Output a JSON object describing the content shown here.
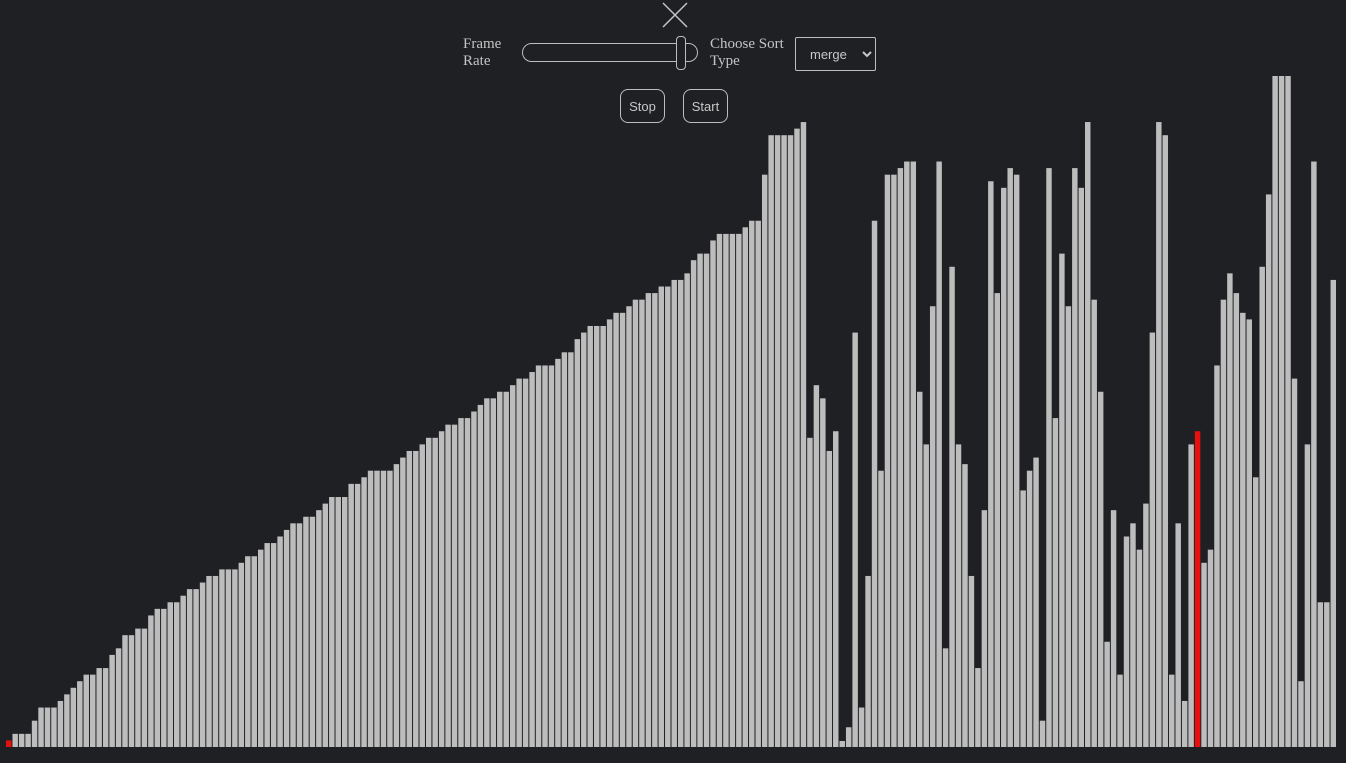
{
  "controls": {
    "frame_rate_label": "Frame Rate",
    "frame_rate_value": 0.93,
    "sort_type_label": "Choose Sort Type",
    "sort_type_selected": "merge",
    "stop_label": "Stop",
    "start_label": "Start"
  },
  "colors": {
    "background": "#1f2024",
    "bar": "#bdbdbd",
    "highlight": "#e8100f"
  },
  "icons": {
    "close": "close-icon"
  },
  "chart_data": {
    "type": "bar",
    "highlighted_indices": [
      0,
      184
    ],
    "values": [
      1,
      2,
      2,
      2,
      4,
      6,
      6,
      6,
      7,
      8,
      9,
      10,
      11,
      11,
      12,
      12,
      14,
      15,
      17,
      17,
      18,
      18,
      20,
      21,
      21,
      22,
      22,
      23,
      24,
      24,
      25,
      26,
      26,
      27,
      27,
      27,
      28,
      29,
      29,
      30,
      31,
      31,
      32,
      33,
      34,
      34,
      35,
      35,
      36,
      37,
      38,
      38,
      38,
      40,
      40,
      41,
      42,
      42,
      42,
      42,
      43,
      44,
      45,
      45,
      46,
      47,
      47,
      48,
      49,
      49,
      50,
      50,
      51,
      52,
      53,
      53,
      54,
      54,
      55,
      56,
      56,
      57,
      58,
      58,
      58,
      59,
      60,
      60,
      62,
      63,
      64,
      64,
      64,
      65,
      66,
      66,
      67,
      68,
      68,
      69,
      69,
      70,
      70,
      71,
      71,
      72,
      74,
      75,
      75,
      77,
      78,
      78,
      78,
      78,
      79,
      80,
      80,
      87,
      93,
      93,
      93,
      93,
      94,
      95,
      47,
      55,
      53,
      45,
      48,
      0,
      3,
      63,
      6,
      26,
      80,
      42,
      87,
      87,
      88,
      89,
      89,
      54,
      46,
      67,
      89,
      15,
      73,
      46,
      43,
      26,
      12,
      36,
      86,
      69,
      85,
      88,
      87,
      39,
      42,
      44,
      4,
      88,
      50,
      75,
      67,
      88,
      85,
      95,
      68,
      54,
      16,
      36,
      11,
      32,
      34,
      30,
      37,
      63,
      95,
      93,
      11,
      34,
      7,
      46,
      48,
      28,
      30,
      58,
      68,
      72,
      69,
      66,
      65,
      41,
      73,
      84,
      102,
      102,
      102,
      56,
      10,
      46,
      89,
      22,
      22,
      71
    ]
  }
}
